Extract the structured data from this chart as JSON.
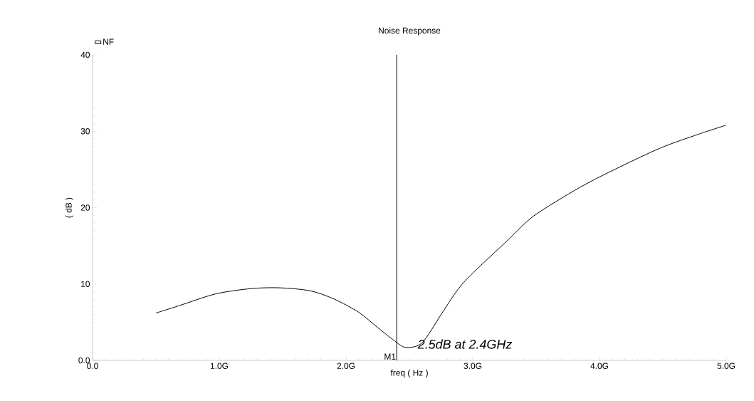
{
  "chart_data": {
    "type": "line",
    "title": "Noise Response",
    "xlabel": "freq ( Hz )",
    "ylabel": "( dB )",
    "x": [
      0.5,
      0.69,
      0.97,
      1.25,
      1.48,
      1.72,
      1.91,
      2.1,
      2.25,
      2.38,
      2.47,
      2.6,
      2.75,
      2.87,
      2.98,
      3.28,
      3.48,
      3.84,
      4.12,
      4.48,
      4.78,
      5.0
    ],
    "series": [
      {
        "name": "NF",
        "color": "#000000",
        "values": [
          6.2,
          7.2,
          8.7,
          9.4,
          9.5,
          9.1,
          8.0,
          6.3,
          4.3,
          2.6,
          1.7,
          2.3,
          6.0,
          9.0,
          11.1,
          15.8,
          18.9,
          22.6,
          25.0,
          27.8,
          29.6,
          30.8
        ]
      }
    ],
    "xlim": [
      0,
      5
    ],
    "ylim": [
      0,
      40
    ],
    "xticks": [
      {
        "value": 0,
        "label": "0.0"
      },
      {
        "value": 1,
        "label": "1.0G"
      },
      {
        "value": 2,
        "label": "2.0G"
      },
      {
        "value": 3,
        "label": "3.0G"
      },
      {
        "value": 4,
        "label": "4.0G"
      },
      {
        "value": 5,
        "label": "5.0G"
      }
    ],
    "yticks": [
      {
        "value": 0,
        "label": "0.0"
      },
      10,
      20,
      30,
      40
    ],
    "ref_lines": [
      {
        "axis": "x",
        "value": 2.4,
        "label": "M1",
        "color": "#000000"
      }
    ],
    "annotations": [
      {
        "text": "2.5dB at 2.4GHz",
        "x": 2.4,
        "y": 2.5
      }
    ],
    "legend": "top left"
  }
}
